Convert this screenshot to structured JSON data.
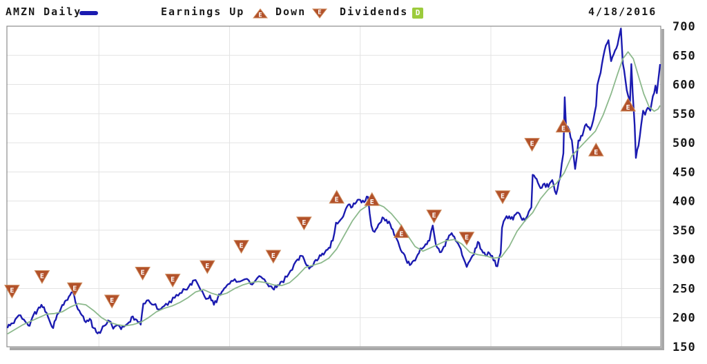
{
  "header": {
    "symbol_label": "AMZN Daily",
    "earnings_label": "Earnings Up",
    "down_label": "Down",
    "dividends_label": "Dividends",
    "dividend_badge_text": "D",
    "marker_letter": "E",
    "date_label": "4/18/2016"
  },
  "colors": {
    "price_line": "#1b1bb0",
    "ma_line": "#8cb98c",
    "marker_fill": "#b2512a",
    "marker_edge": "#cd8a5c",
    "marker_letter": "#ffffff",
    "dividend_badge": "#9ccb3c",
    "grid": "#e3e3e3",
    "frame": "#8b8b8b",
    "shadow": "#a8a8a8",
    "text": "#1a1a1a"
  },
  "chart_data": {
    "type": "line",
    "title": "AMZN Daily",
    "as_of_date": "4/18/2016",
    "x_axis": {
      "kind": "time-decimal-years",
      "range": [
        2011.296,
        2016.3
      ],
      "gridline_years": [
        2012,
        2013,
        2014,
        2015,
        2016
      ],
      "tick_labels_shown": false
    },
    "y_axis": {
      "side": "right",
      "range": [
        150,
        700
      ],
      "ticks": [
        700,
        650,
        600,
        550,
        500,
        450,
        400,
        350,
        300,
        250,
        200,
        150
      ]
    },
    "legend": [
      "AMZN Daily",
      "Earnings Up",
      "Down",
      "Dividends"
    ],
    "series": [
      {
        "name": "AMZN daily close",
        "color": "#1b1bb0",
        "points": [
          [
            2011.3,
            182
          ],
          [
            2011.33,
            190
          ],
          [
            2011.36,
            197
          ],
          [
            2011.4,
            204
          ],
          [
            2011.44,
            192
          ],
          [
            2011.47,
            186
          ],
          [
            2011.5,
            205
          ],
          [
            2011.53,
            213
          ],
          [
            2011.56,
            222
          ],
          [
            2011.59,
            210
          ],
          [
            2011.62,
            196
          ],
          [
            2011.65,
            182
          ],
          [
            2011.68,
            205
          ],
          [
            2011.71,
            216
          ],
          [
            2011.74,
            228
          ],
          [
            2011.77,
            236
          ],
          [
            2011.8,
            244
          ],
          [
            2011.82,
            227
          ],
          [
            2011.84,
            214
          ],
          [
            2011.87,
            204
          ],
          [
            2011.9,
            192
          ],
          [
            2011.93,
            198
          ],
          [
            2011.96,
            182
          ],
          [
            2011.99,
            173
          ],
          [
            2012.02,
            179
          ],
          [
            2012.05,
            187
          ],
          [
            2012.08,
            194
          ],
          [
            2012.11,
            181
          ],
          [
            2012.14,
            187
          ],
          [
            2012.17,
            180
          ],
          [
            2012.2,
            186
          ],
          [
            2012.23,
            192
          ],
          [
            2012.26,
            202
          ],
          [
            2012.29,
            196
          ],
          [
            2012.32,
            188
          ],
          [
            2012.34,
            224
          ],
          [
            2012.38,
            230
          ],
          [
            2012.42,
            222
          ],
          [
            2012.46,
            214
          ],
          [
            2012.5,
            220
          ],
          [
            2012.54,
            228
          ],
          [
            2012.58,
            234
          ],
          [
            2012.62,
            242
          ],
          [
            2012.66,
            248
          ],
          [
            2012.7,
            258
          ],
          [
            2012.73,
            264
          ],
          [
            2012.76,
            256
          ],
          [
            2012.79,
            246
          ],
          [
            2012.82,
            232
          ],
          [
            2012.85,
            238
          ],
          [
            2012.88,
            222
          ],
          [
            2012.91,
            234
          ],
          [
            2012.94,
            244
          ],
          [
            2012.97,
            252
          ],
          [
            2013.0,
            258
          ],
          [
            2013.04,
            266
          ],
          [
            2013.08,
            262
          ],
          [
            2013.12,
            266
          ],
          [
            2013.16,
            258
          ],
          [
            2013.2,
            264
          ],
          [
            2013.24,
            270
          ],
          [
            2013.28,
            260
          ],
          [
            2013.31,
            254
          ],
          [
            2013.34,
            248
          ],
          [
            2013.37,
            256
          ],
          [
            2013.4,
            262
          ],
          [
            2013.44,
            270
          ],
          [
            2013.48,
            282
          ],
          [
            2013.52,
            300
          ],
          [
            2013.55,
            306
          ],
          [
            2013.58,
            294
          ],
          [
            2013.61,
            284
          ],
          [
            2013.64,
            290
          ],
          [
            2013.67,
            298
          ],
          [
            2013.7,
            306
          ],
          [
            2013.73,
            312
          ],
          [
            2013.76,
            320
          ],
          [
            2013.79,
            332
          ],
          [
            2013.815,
            363
          ],
          [
            2013.85,
            368
          ],
          [
            2013.88,
            380
          ],
          [
            2013.91,
            394
          ],
          [
            2013.94,
            390
          ],
          [
            2013.97,
            398
          ],
          [
            2014.0,
            402
          ],
          [
            2014.03,
            398
          ],
          [
            2014.06,
            407
          ],
          [
            2014.085,
            358
          ],
          [
            2014.11,
            347
          ],
          [
            2014.14,
            360
          ],
          [
            2014.17,
            372
          ],
          [
            2014.2,
            368
          ],
          [
            2014.23,
            360
          ],
          [
            2014.26,
            342
          ],
          [
            2014.29,
            330
          ],
          [
            2014.32,
            312
          ],
          [
            2014.35,
            300
          ],
          [
            2014.38,
            290
          ],
          [
            2014.41,
            298
          ],
          [
            2014.44,
            308
          ],
          [
            2014.47,
            318
          ],
          [
            2014.5,
            326
          ],
          [
            2014.53,
            332
          ],
          [
            2014.555,
            358
          ],
          [
            2014.58,
            324
          ],
          [
            2014.61,
            312
          ],
          [
            2014.64,
            322
          ],
          [
            2014.67,
            334
          ],
          [
            2014.7,
            345
          ],
          [
            2014.73,
            332
          ],
          [
            2014.76,
            322
          ],
          [
            2014.79,
            302
          ],
          [
            2014.815,
            287
          ],
          [
            2014.84,
            298
          ],
          [
            2014.87,
            308
          ],
          [
            2014.9,
            330
          ],
          [
            2014.93,
            316
          ],
          [
            2014.96,
            306
          ],
          [
            2014.99,
            310
          ],
          [
            2015.02,
            298
          ],
          [
            2015.05,
            288
          ],
          [
            2015.075,
            311
          ],
          [
            2015.085,
            354
          ],
          [
            2015.11,
            370
          ],
          [
            2015.14,
            374
          ],
          [
            2015.17,
            368
          ],
          [
            2015.2,
            380
          ],
          [
            2015.23,
            372
          ],
          [
            2015.26,
            366
          ],
          [
            2015.29,
            382
          ],
          [
            2015.31,
            389
          ],
          [
            2015.32,
            445
          ],
          [
            2015.35,
            438
          ],
          [
            2015.38,
            422
          ],
          [
            2015.41,
            430
          ],
          [
            2015.44,
            424
          ],
          [
            2015.47,
            436
          ],
          [
            2015.5,
            412
          ],
          [
            2015.53,
            440
          ],
          [
            2015.555,
            482
          ],
          [
            2015.565,
            578
          ],
          [
            2015.575,
            529
          ],
          [
            2015.6,
            522
          ],
          [
            2015.62,
            504
          ],
          [
            2015.645,
            455
          ],
          [
            2015.67,
            504
          ],
          [
            2015.7,
            512
          ],
          [
            2015.73,
            532
          ],
          [
            2015.76,
            522
          ],
          [
            2015.785,
            540
          ],
          [
            2015.805,
            563
          ],
          [
            2015.815,
            599
          ],
          [
            2015.84,
            620
          ],
          [
            2015.87,
            658
          ],
          [
            2015.9,
            676
          ],
          [
            2015.92,
            640
          ],
          [
            2015.94,
            652
          ],
          [
            2015.96,
            662
          ],
          [
            2015.98,
            680
          ],
          [
            2015.995,
            696
          ],
          [
            2016.01,
            636
          ],
          [
            2016.03,
            607
          ],
          [
            2016.05,
            581
          ],
          [
            2016.065,
            571
          ],
          [
            2016.075,
            635
          ],
          [
            2016.085,
            587
          ],
          [
            2016.1,
            530
          ],
          [
            2016.11,
            474
          ],
          [
            2016.13,
            495
          ],
          [
            2016.15,
            530
          ],
          [
            2016.165,
            555
          ],
          [
            2016.18,
            548
          ],
          [
            2016.2,
            560
          ],
          [
            2016.22,
            555
          ],
          [
            2016.24,
            580
          ],
          [
            2016.26,
            598
          ],
          [
            2016.27,
            585
          ],
          [
            2016.28,
            605
          ],
          [
            2016.295,
            635
          ]
        ]
      },
      {
        "name": "moving average",
        "color": "#8cb98c",
        "points": [
          [
            2011.3,
            172
          ],
          [
            2011.36,
            180
          ],
          [
            2011.42,
            188
          ],
          [
            2011.48,
            194
          ],
          [
            2011.54,
            200
          ],
          [
            2011.6,
            206
          ],
          [
            2011.66,
            207
          ],
          [
            2011.72,
            210
          ],
          [
            2011.78,
            218
          ],
          [
            2011.84,
            224
          ],
          [
            2011.9,
            222
          ],
          [
            2011.96,
            212
          ],
          [
            2012.02,
            200
          ],
          [
            2012.08,
            192
          ],
          [
            2012.14,
            188
          ],
          [
            2012.2,
            186
          ],
          [
            2012.26,
            188
          ],
          [
            2012.32,
            192
          ],
          [
            2012.38,
            200
          ],
          [
            2012.44,
            210
          ],
          [
            2012.5,
            216
          ],
          [
            2012.56,
            220
          ],
          [
            2012.62,
            226
          ],
          [
            2012.68,
            234
          ],
          [
            2012.74,
            244
          ],
          [
            2012.8,
            248
          ],
          [
            2012.86,
            242
          ],
          [
            2012.92,
            238
          ],
          [
            2012.98,
            242
          ],
          [
            2013.04,
            250
          ],
          [
            2013.1,
            256
          ],
          [
            2013.16,
            260
          ],
          [
            2013.22,
            262
          ],
          [
            2013.28,
            260
          ],
          [
            2013.34,
            256
          ],
          [
            2013.4,
            255
          ],
          [
            2013.46,
            260
          ],
          [
            2013.52,
            272
          ],
          [
            2013.58,
            286
          ],
          [
            2013.64,
            290
          ],
          [
            2013.7,
            294
          ],
          [
            2013.76,
            302
          ],
          [
            2013.82,
            318
          ],
          [
            2013.88,
            342
          ],
          [
            2013.94,
            366
          ],
          [
            2014.0,
            384
          ],
          [
            2014.06,
            393
          ],
          [
            2014.12,
            396
          ],
          [
            2014.18,
            390
          ],
          [
            2014.24,
            378
          ],
          [
            2014.3,
            362
          ],
          [
            2014.36,
            342
          ],
          [
            2014.42,
            322
          ],
          [
            2014.48,
            314
          ],
          [
            2014.54,
            320
          ],
          [
            2014.6,
            326
          ],
          [
            2014.66,
            332
          ],
          [
            2014.72,
            334
          ],
          [
            2014.78,
            326
          ],
          [
            2014.84,
            312
          ],
          [
            2014.9,
            308
          ],
          [
            2014.96,
            306
          ],
          [
            2015.02,
            302
          ],
          [
            2015.08,
            304
          ],
          [
            2015.14,
            322
          ],
          [
            2015.2,
            348
          ],
          [
            2015.26,
            366
          ],
          [
            2015.32,
            380
          ],
          [
            2015.38,
            404
          ],
          [
            2015.44,
            420
          ],
          [
            2015.5,
            430
          ],
          [
            2015.56,
            448
          ],
          [
            2015.62,
            478
          ],
          [
            2015.68,
            492
          ],
          [
            2015.74,
            506
          ],
          [
            2015.8,
            520
          ],
          [
            2015.86,
            548
          ],
          [
            2015.92,
            584
          ],
          [
            2015.97,
            618
          ],
          [
            2016.01,
            644
          ],
          [
            2016.05,
            656
          ],
          [
            2016.09,
            644
          ],
          [
            2016.13,
            614
          ],
          [
            2016.17,
            584
          ],
          [
            2016.21,
            562
          ],
          [
            2016.25,
            554
          ],
          [
            2016.28,
            558
          ],
          [
            2016.295,
            564
          ]
        ]
      }
    ],
    "earnings_markers": [
      {
        "x": 2011.335,
        "price": 245,
        "direction": "down"
      },
      {
        "x": 2011.565,
        "price": 270,
        "direction": "down"
      },
      {
        "x": 2011.815,
        "price": 249,
        "direction": "down"
      },
      {
        "x": 2012.1,
        "price": 228,
        "direction": "down"
      },
      {
        "x": 2012.335,
        "price": 276,
        "direction": "down"
      },
      {
        "x": 2012.565,
        "price": 264,
        "direction": "down"
      },
      {
        "x": 2012.83,
        "price": 287,
        "direction": "down"
      },
      {
        "x": 2013.09,
        "price": 322,
        "direction": "down"
      },
      {
        "x": 2013.335,
        "price": 305,
        "direction": "down"
      },
      {
        "x": 2013.57,
        "price": 362,
        "direction": "down"
      },
      {
        "x": 2013.82,
        "price": 407,
        "direction": "up"
      },
      {
        "x": 2014.09,
        "price": 403,
        "direction": "up"
      },
      {
        "x": 2014.315,
        "price": 348,
        "direction": "up"
      },
      {
        "x": 2014.565,
        "price": 374,
        "direction": "down"
      },
      {
        "x": 2014.815,
        "price": 336,
        "direction": "down"
      },
      {
        "x": 2015.09,
        "price": 407,
        "direction": "down"
      },
      {
        "x": 2015.315,
        "price": 497,
        "direction": "down"
      },
      {
        "x": 2015.555,
        "price": 529,
        "direction": "up"
      },
      {
        "x": 2015.805,
        "price": 488,
        "direction": "up"
      },
      {
        "x": 2016.05,
        "price": 565,
        "direction": "up"
      }
    ],
    "dividend_markers": []
  }
}
